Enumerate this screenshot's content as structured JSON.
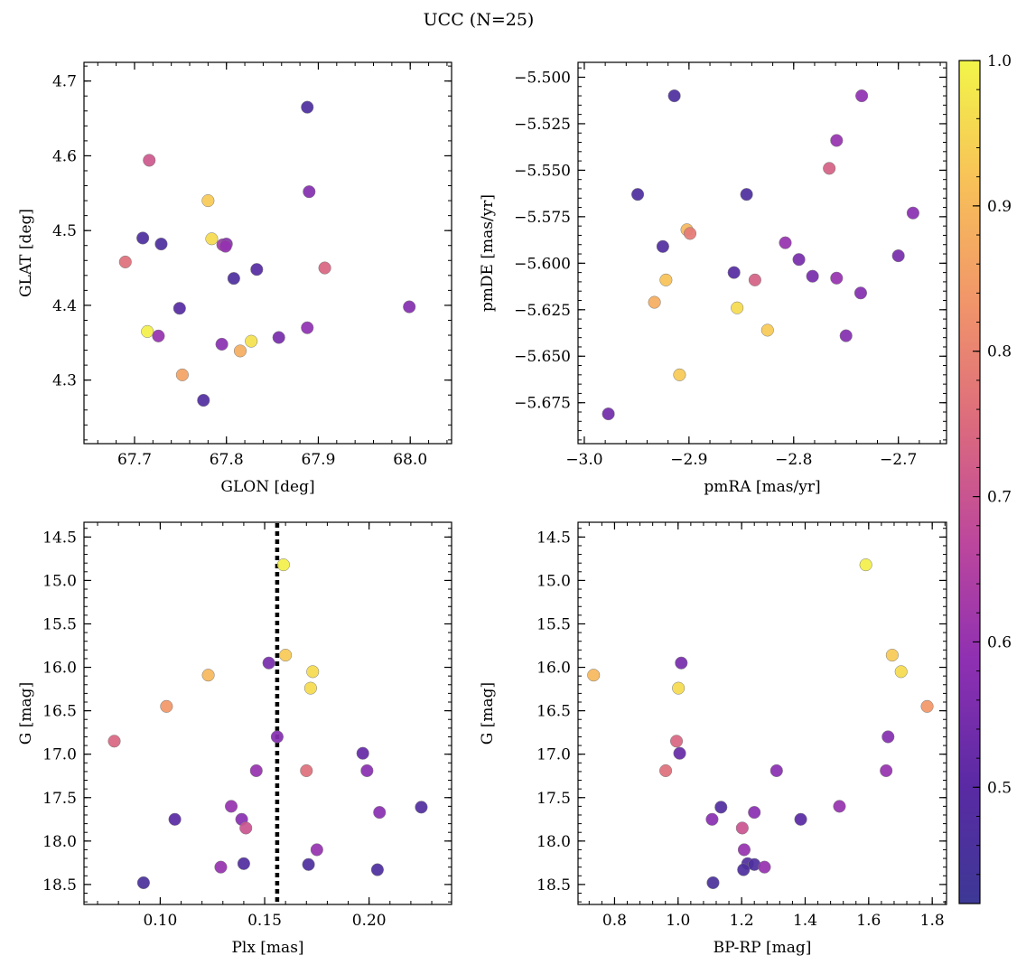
{
  "figure": {
    "title": "UCC (N=25)"
  },
  "colorbar": {
    "min": 0.42,
    "max": 1.0,
    "ticks": [
      0.5,
      0.6,
      0.7,
      0.8,
      0.9,
      1.0
    ],
    "tick_labels": [
      "0.5",
      "0.6",
      "0.7",
      "0.8",
      "0.9",
      "1.0"
    ]
  },
  "chart_data": [
    {
      "type": "scatter",
      "xlabel": "GLON [deg]",
      "ylabel": "GLAT [deg]",
      "xlim": [
        67.645,
        68.045
      ],
      "ylim": [
        4.215,
        4.725
      ],
      "xticks": [
        67.7,
        67.8,
        67.9,
        68.0
      ],
      "xtick_labels": [
        "67.7",
        "67.8",
        "67.9",
        "68.0"
      ],
      "yticks": [
        4.3,
        4.4,
        4.5,
        4.6,
        4.7
      ],
      "ytick_labels": [
        "4.3",
        "4.4",
        "4.5",
        "4.6",
        "4.7"
      ],
      "invert_y": false,
      "points": [
        {
          "x": 67.888,
          "y": 4.665,
          "c": 0.47
        },
        {
          "x": 67.716,
          "y": 4.594,
          "c": 0.71
        },
        {
          "x": 67.89,
          "y": 4.552,
          "c": 0.57
        },
        {
          "x": 67.78,
          "y": 4.54,
          "c": 0.93
        },
        {
          "x": 67.709,
          "y": 4.49,
          "c": 0.47
        },
        {
          "x": 67.729,
          "y": 4.482,
          "c": 0.47
        },
        {
          "x": 67.784,
          "y": 4.489,
          "c": 0.96
        },
        {
          "x": 67.796,
          "y": 4.481,
          "c": 0.62
        },
        {
          "x": 67.8,
          "y": 4.482,
          "c": 0.58
        },
        {
          "x": 67.799,
          "y": 4.479,
          "c": 0.6
        },
        {
          "x": 67.69,
          "y": 4.458,
          "c": 0.76
        },
        {
          "x": 67.907,
          "y": 4.45,
          "c": 0.74
        },
        {
          "x": 67.833,
          "y": 4.448,
          "c": 0.49
        },
        {
          "x": 67.808,
          "y": 4.436,
          "c": 0.47
        },
        {
          "x": 67.749,
          "y": 4.396,
          "c": 0.49
        },
        {
          "x": 67.999,
          "y": 4.398,
          "c": 0.57
        },
        {
          "x": 67.714,
          "y": 4.365,
          "c": 0.99
        },
        {
          "x": 67.888,
          "y": 4.37,
          "c": 0.59
        },
        {
          "x": 67.726,
          "y": 4.359,
          "c": 0.6
        },
        {
          "x": 67.857,
          "y": 4.357,
          "c": 0.55
        },
        {
          "x": 67.827,
          "y": 4.352,
          "c": 0.97
        },
        {
          "x": 67.795,
          "y": 4.348,
          "c": 0.58
        },
        {
          "x": 67.815,
          "y": 4.339,
          "c": 0.88
        },
        {
          "x": 67.752,
          "y": 4.307,
          "c": 0.86
        },
        {
          "x": 67.775,
          "y": 4.273,
          "c": 0.48
        }
      ]
    },
    {
      "type": "scatter",
      "xlabel": "pmRA [mas/yr]",
      "ylabel": "pmDE [mas/yr]",
      "xlim": [
        -3.006,
        -2.654
      ],
      "ylim": [
        -5.697,
        -5.492
      ],
      "xticks": [
        -3.0,
        -2.9,
        -2.8,
        -2.7
      ],
      "xtick_labels": [
        "−3.0",
        "−2.9",
        "−2.8",
        "−2.7"
      ],
      "yticks": [
        -5.675,
        -5.65,
        -5.625,
        -5.6,
        -5.575,
        -5.55,
        -5.525,
        -5.5
      ],
      "ytick_labels": [
        "−5.675",
        "−5.650",
        "−5.625",
        "−5.600",
        "−5.575",
        "−5.550",
        "−5.525",
        "−5.500"
      ],
      "invert_y": false,
      "points": [
        {
          "x": -2.914,
          "y": -5.51,
          "c": 0.47
        },
        {
          "x": -2.735,
          "y": -5.51,
          "c": 0.59
        },
        {
          "x": -2.759,
          "y": -5.534,
          "c": 0.6
        },
        {
          "x": -2.766,
          "y": -5.549,
          "c": 0.73
        },
        {
          "x": -2.949,
          "y": -5.563,
          "c": 0.47
        },
        {
          "x": -2.845,
          "y": -5.563,
          "c": 0.47
        },
        {
          "x": -2.686,
          "y": -5.573,
          "c": 0.58
        },
        {
          "x": -2.902,
          "y": -5.582,
          "c": 0.9
        },
        {
          "x": -2.899,
          "y": -5.584,
          "c": 0.78
        },
        {
          "x": -2.808,
          "y": -5.589,
          "c": 0.6
        },
        {
          "x": -2.925,
          "y": -5.591,
          "c": 0.48
        },
        {
          "x": -2.7,
          "y": -5.596,
          "c": 0.55
        },
        {
          "x": -2.795,
          "y": -5.598,
          "c": 0.55
        },
        {
          "x": -2.857,
          "y": -5.605,
          "c": 0.49
        },
        {
          "x": -2.782,
          "y": -5.607,
          "c": 0.55
        },
        {
          "x": -2.759,
          "y": -5.608,
          "c": 0.6
        },
        {
          "x": -2.837,
          "y": -5.609,
          "c": 0.73
        },
        {
          "x": -2.922,
          "y": -5.609,
          "c": 0.92
        },
        {
          "x": -2.736,
          "y": -5.616,
          "c": 0.57
        },
        {
          "x": -2.933,
          "y": -5.621,
          "c": 0.88
        },
        {
          "x": -2.854,
          "y": -5.624,
          "c": 0.96
        },
        {
          "x": -2.825,
          "y": -5.636,
          "c": 0.93
        },
        {
          "x": -2.75,
          "y": -5.639,
          "c": 0.57
        },
        {
          "x": -2.909,
          "y": -5.66,
          "c": 0.93
        },
        {
          "x": -2.977,
          "y": -5.681,
          "c": 0.54
        }
      ]
    },
    {
      "type": "scatter",
      "xlabel": "Plx [mas]",
      "ylabel": "G [mag]",
      "xlim": [
        0.0635,
        0.2395
      ],
      "ylim": [
        14.33,
        18.73
      ],
      "xticks": [
        0.1,
        0.15,
        0.2
      ],
      "xtick_labels": [
        "0.10",
        "0.15",
        "0.20"
      ],
      "yticks": [
        14.5,
        15.0,
        15.5,
        16.0,
        16.5,
        17.0,
        17.5,
        18.0,
        18.5
      ],
      "ytick_labels": [
        "14.5",
        "15.0",
        "15.5",
        "16.0",
        "16.5",
        "17.0",
        "17.5",
        "18.0",
        "18.5"
      ],
      "invert_y": true,
      "vline": {
        "x": 0.156
      },
      "points": [
        {
          "x": 0.159,
          "y": 14.82,
          "c": 0.99
        },
        {
          "x": 0.16,
          "y": 15.86,
          "c": 0.93
        },
        {
          "x": 0.152,
          "y": 15.95,
          "c": 0.55
        },
        {
          "x": 0.173,
          "y": 16.05,
          "c": 0.96
        },
        {
          "x": 0.123,
          "y": 16.09,
          "c": 0.9
        },
        {
          "x": 0.172,
          "y": 16.24,
          "c": 0.96
        },
        {
          "x": 0.103,
          "y": 16.45,
          "c": 0.84
        },
        {
          "x": 0.156,
          "y": 16.8,
          "c": 0.57
        },
        {
          "x": 0.078,
          "y": 16.85,
          "c": 0.74
        },
        {
          "x": 0.197,
          "y": 16.99,
          "c": 0.52
        },
        {
          "x": 0.146,
          "y": 17.19,
          "c": 0.6
        },
        {
          "x": 0.17,
          "y": 17.19,
          "c": 0.76
        },
        {
          "x": 0.199,
          "y": 17.19,
          "c": 0.58
        },
        {
          "x": 0.134,
          "y": 17.6,
          "c": 0.6
        },
        {
          "x": 0.225,
          "y": 17.61,
          "c": 0.48
        },
        {
          "x": 0.205,
          "y": 17.67,
          "c": 0.58
        },
        {
          "x": 0.107,
          "y": 17.75,
          "c": 0.5
        },
        {
          "x": 0.139,
          "y": 17.75,
          "c": 0.58
        },
        {
          "x": 0.141,
          "y": 17.85,
          "c": 0.7
        },
        {
          "x": 0.175,
          "y": 18.1,
          "c": 0.6
        },
        {
          "x": 0.14,
          "y": 18.26,
          "c": 0.48
        },
        {
          "x": 0.171,
          "y": 18.27,
          "c": 0.47
        },
        {
          "x": 0.129,
          "y": 18.3,
          "c": 0.6
        },
        {
          "x": 0.204,
          "y": 18.33,
          "c": 0.47
        },
        {
          "x": 0.092,
          "y": 18.48,
          "c": 0.46
        }
      ]
    },
    {
      "type": "scatter",
      "xlabel": "BP-RP [mag]",
      "ylabel": "G [mag]",
      "xlim": [
        0.685,
        1.845
      ],
      "ylim": [
        14.33,
        18.73
      ],
      "xticks": [
        0.8,
        1.0,
        1.2,
        1.4,
        1.6,
        1.8
      ],
      "xtick_labels": [
        "0.8",
        "1.0",
        "1.2",
        "1.4",
        "1.6",
        "1.8"
      ],
      "yticks": [
        14.5,
        15.0,
        15.5,
        16.0,
        16.5,
        17.0,
        17.5,
        18.0,
        18.5
      ],
      "ytick_labels": [
        "14.5",
        "15.0",
        "15.5",
        "16.0",
        "16.5",
        "17.0",
        "17.5",
        "18.0",
        "18.5"
      ],
      "invert_y": true,
      "points": [
        {
          "x": 1.591,
          "y": 14.82,
          "c": 0.99
        },
        {
          "x": 1.674,
          "y": 15.86,
          "c": 0.93
        },
        {
          "x": 1.01,
          "y": 15.95,
          "c": 0.55
        },
        {
          "x": 1.702,
          "y": 16.05,
          "c": 0.96
        },
        {
          "x": 0.734,
          "y": 16.09,
          "c": 0.9
        },
        {
          "x": 1.001,
          "y": 16.24,
          "c": 0.96
        },
        {
          "x": 1.784,
          "y": 16.45,
          "c": 0.84
        },
        {
          "x": 1.661,
          "y": 16.8,
          "c": 0.57
        },
        {
          "x": 0.995,
          "y": 16.85,
          "c": 0.74
        },
        {
          "x": 1.005,
          "y": 16.99,
          "c": 0.52
        },
        {
          "x": 0.961,
          "y": 17.19,
          "c": 0.76
        },
        {
          "x": 1.31,
          "y": 17.19,
          "c": 0.58
        },
        {
          "x": 1.655,
          "y": 17.19,
          "c": 0.6
        },
        {
          "x": 1.508,
          "y": 17.6,
          "c": 0.6
        },
        {
          "x": 1.135,
          "y": 17.61,
          "c": 0.48
        },
        {
          "x": 1.24,
          "y": 17.67,
          "c": 0.58
        },
        {
          "x": 1.107,
          "y": 17.75,
          "c": 0.58
        },
        {
          "x": 1.386,
          "y": 17.75,
          "c": 0.5
        },
        {
          "x": 1.202,
          "y": 17.85,
          "c": 0.7
        },
        {
          "x": 1.208,
          "y": 18.1,
          "c": 0.6
        },
        {
          "x": 1.219,
          "y": 18.26,
          "c": 0.48
        },
        {
          "x": 1.24,
          "y": 18.27,
          "c": 0.47
        },
        {
          "x": 1.272,
          "y": 18.3,
          "c": 0.6
        },
        {
          "x": 1.206,
          "y": 18.33,
          "c": 0.47
        },
        {
          "x": 1.11,
          "y": 18.48,
          "c": 0.46
        }
      ]
    }
  ]
}
